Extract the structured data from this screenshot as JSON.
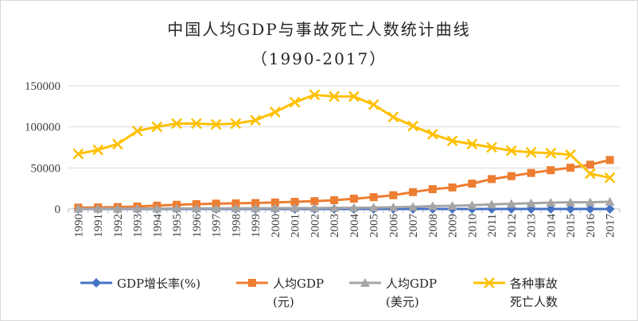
{
  "chart_data": {
    "type": "line",
    "title": "中国人均GDP与事故死亡人数统计曲线",
    "subtitle": "（1990-2017）",
    "xlabel": "",
    "ylabel": "",
    "ylim": [
      0,
      150000
    ],
    "yticks": [
      "150000",
      "100000",
      "50000",
      "0"
    ],
    "categories": [
      "1990",
      "1991",
      "1992",
      "1993",
      "1994",
      "1995",
      "1996",
      "1997",
      "1998",
      "1999",
      "2000",
      "2001",
      "2002",
      "2003",
      "2004",
      "2005",
      "2006",
      "2007",
      "2008",
      "2009",
      "2010",
      "2011",
      "2012",
      "2013",
      "2014",
      "2015",
      "2016",
      "2017"
    ],
    "legend_position": "bottom",
    "series": [
      {
        "name": "GDP增长率(%)",
        "legend_lines": [
          "GDP增长率(%)"
        ],
        "color": "#4472c4",
        "marker": "diamond",
        "values": [
          3.9,
          9.3,
          14.2,
          13.9,
          13.0,
          11.0,
          9.9,
          9.2,
          7.8,
          7.7,
          8.5,
          8.3,
          9.1,
          10.0,
          10.1,
          11.4,
          12.7,
          14.2,
          9.7,
          9.4,
          10.6,
          9.6,
          7.9,
          7.8,
          7.3,
          6.9,
          6.7,
          6.8
        ]
      },
      {
        "name": "人均GDP(元)",
        "legend_lines": [
          "人均GDP",
          "(元)"
        ],
        "color": "#ed7d31",
        "marker": "square",
        "values": [
          1663,
          1912,
          2334,
          3027,
          4081,
          5091,
          5898,
          6481,
          6860,
          7229,
          7942,
          8717,
          9506,
          10666,
          12487,
          14368,
          16738,
          20505,
          24121,
          26222,
          30876,
          36403,
          40007,
          43852,
          47203,
          50251,
          53935,
          59660
        ]
      },
      {
        "name": "人均GDP(美元)",
        "legend_lines": [
          "人均GDP",
          "(美元)"
        ],
        "color": "#a5a5a5",
        "marker": "triangle",
        "values": [
          348,
          359,
          423,
          525,
          473,
          609,
          709,
          782,
          829,
          873,
          959,
          1053,
          1148,
          1288,
          1508,
          1753,
          2099,
          2694,
          3468,
          3832,
          4550,
          5618,
          6317,
          7050,
          7684,
          8069,
          8117,
          8827
        ]
      },
      {
        "name": "各种事故死亡人数",
        "legend_lines": [
          "各种事故",
          "死亡人数"
        ],
        "color": "#ffc000",
        "marker": "x",
        "values": [
          67000,
          72000,
          79000,
          95000,
          100000,
          104000,
          104000,
          103000,
          104000,
          108000,
          118000,
          130000,
          139000,
          137000,
          137000,
          127000,
          112000,
          101000,
          91000,
          83000,
          79000,
          75000,
          71000,
          69000,
          68000,
          66000,
          43000,
          38000
        ]
      }
    ]
  }
}
